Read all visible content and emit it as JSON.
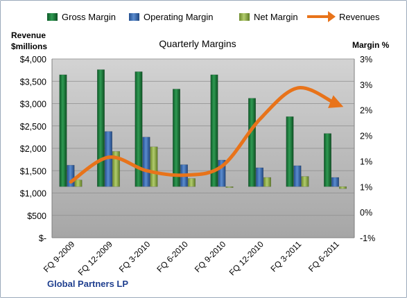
{
  "chart_data": {
    "type": "bar",
    "title": "Quarterly Margins",
    "company": "Global Partners LP",
    "left_axis_title_line1": "Revenue",
    "left_axis_title_line2": "$millions",
    "right_axis_title": "Margin %",
    "categories": [
      "FQ 9-2009",
      "FQ 12-2009",
      "FQ 3-2010",
      "FQ 6-2010",
      "FQ 9-2010",
      "FQ 12-2010",
      "FQ 3-2011",
      "FQ 6-2011"
    ],
    "left_axis": {
      "ticks": [
        "$-",
        "$500",
        "$1,000",
        "$1,500",
        "$2,000",
        "$2,500",
        "$3,000",
        "$3,500",
        "$4,000"
      ],
      "range": [
        0,
        4000
      ]
    },
    "right_axis": {
      "ticks": [
        "-1%",
        "0%",
        "1%",
        "1%",
        "2%",
        "2%",
        "3%",
        "3%"
      ],
      "range": [
        -1,
        2.5
      ]
    },
    "series": [
      {
        "name": "Gross Margin",
        "axis": "right",
        "kind": "bar",
        "color": "#1e7a3c",
        "values": [
          2.19,
          2.29,
          2.25,
          1.91,
          2.19,
          1.73,
          1.37,
          1.04
        ]
      },
      {
        "name": "Operating Margin",
        "axis": "right",
        "kind": "bar",
        "color": "#3d6fb4",
        "values": [
          0.42,
          1.08,
          0.97,
          0.43,
          0.52,
          0.37,
          0.41,
          0.18
        ]
      },
      {
        "name": "Net Margin",
        "axis": "right",
        "kind": "bar",
        "color": "#93b34a",
        "values": [
          0.13,
          0.69,
          0.78,
          0.16,
          -0.02,
          0.18,
          0.2,
          -0.04
        ]
      },
      {
        "name": "Revenues",
        "axis": "left",
        "kind": "line",
        "color": "#e8731a",
        "values": [
          1250,
          1800,
          1500,
          1400,
          1600,
          2650,
          3350,
          3000
        ]
      }
    ]
  }
}
